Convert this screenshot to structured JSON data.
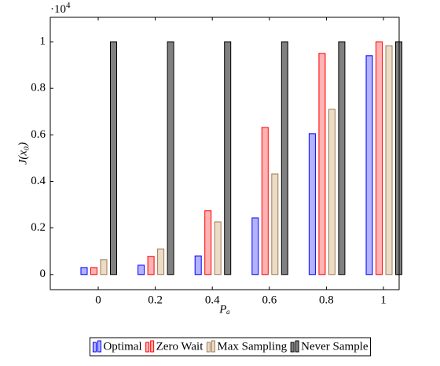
{
  "chart_data": {
    "type": "bar",
    "ylabel": "J(x₀)",
    "xlabel": "Pₐ",
    "y_scale_base": "·10",
    "y_scale_exponent": "4",
    "x": [
      0,
      0.2,
      0.4,
      0.6,
      0.8,
      1
    ],
    "series": [
      {
        "name": "Optimal",
        "color": "#b3b3ff",
        "edgecolor": "#0000ff",
        "values": [
          0.03,
          0.04,
          0.08,
          0.243,
          0.605,
          0.94
        ]
      },
      {
        "name": "Zero Wait",
        "color": "#ffb3b3",
        "edgecolor": "#ff0000",
        "values": [
          0.03,
          0.078,
          0.274,
          0.632,
          0.95,
          1.0
        ]
      },
      {
        "name": "Max Sampling",
        "color": "#ecdcc6",
        "edgecolor": "#9c7a56",
        "values": [
          0.064,
          0.11,
          0.226,
          0.432,
          0.71,
          0.983
        ]
      },
      {
        "name": "Never Sample",
        "color": "#808080",
        "edgecolor": "#000000",
        "values": [
          1.0,
          1.0,
          1.0,
          1.0,
          1.0,
          1.0
        ]
      }
    ],
    "xlim": [
      -0.168,
      1.055
    ],
    "xticks": [
      0,
      0.2,
      0.4,
      0.6,
      0.8,
      1
    ],
    "ylim": [
      -0.065,
      1.105
    ],
    "yticks": [
      0,
      0.2,
      0.4,
      0.6,
      0.8,
      1
    ],
    "legend": "below"
  }
}
